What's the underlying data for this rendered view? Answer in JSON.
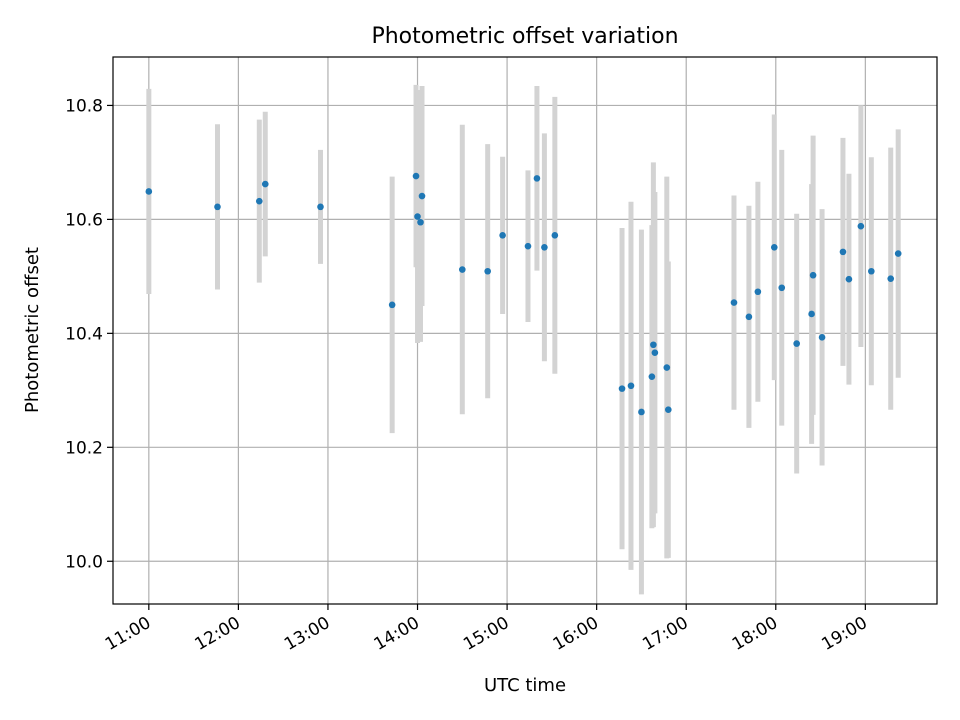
{
  "chart_data": {
    "type": "scatter",
    "title": "Photometric offset variation",
    "xlabel": "UTC time",
    "ylabel": "Photometric offset",
    "x_is_time": true,
    "x_unit": "hours UTC",
    "xlim": [
      "10:36",
      "19:48"
    ],
    "ylim": [
      9.925,
      10.885
    ],
    "xticks": [
      {
        "value": "11:00",
        "label": "11:00"
      },
      {
        "value": "12:00",
        "label": "12:00"
      },
      {
        "value": "13:00",
        "label": "13:00"
      },
      {
        "value": "14:00",
        "label": "14:00"
      },
      {
        "value": "15:00",
        "label": "15:00"
      },
      {
        "value": "16:00",
        "label": "16:00"
      },
      {
        "value": "17:00",
        "label": "17:00"
      },
      {
        "value": "18:00",
        "label": "18:00"
      },
      {
        "value": "19:00",
        "label": "19:00"
      }
    ],
    "yticks": [
      {
        "value": 10.0,
        "label": "10.0"
      },
      {
        "value": 10.2,
        "label": "10.2"
      },
      {
        "value": 10.4,
        "label": "10.4"
      },
      {
        "value": 10.6,
        "label": "10.6"
      },
      {
        "value": 10.8,
        "label": "10.8"
      }
    ],
    "grid": true,
    "marker_color": "#1f77b4",
    "errorbar_color": "#d3d3d3",
    "points": [
      {
        "x": "11:00",
        "y": 10.649,
        "err": 0.18
      },
      {
        "x": "11:46",
        "y": 10.622,
        "err": 0.145
      },
      {
        "x": "12:14",
        "y": 10.632,
        "err": 0.143
      },
      {
        "x": "12:18",
        "y": 10.662,
        "err": 0.127
      },
      {
        "x": "12:55",
        "y": 10.622,
        "err": 0.1
      },
      {
        "x": "13:43",
        "y": 10.45,
        "err": 0.225
      },
      {
        "x": "13:59",
        "y": 10.676,
        "err": 0.16
      },
      {
        "x": "14:00",
        "y": 10.605,
        "err": 0.222
      },
      {
        "x": "14:02",
        "y": 10.595,
        "err": 0.21
      },
      {
        "x": "14:03",
        "y": 10.641,
        "err": 0.193
      },
      {
        "x": "14:30",
        "y": 10.512,
        "err": 0.254
      },
      {
        "x": "14:47",
        "y": 10.509,
        "err": 0.223
      },
      {
        "x": "14:57",
        "y": 10.572,
        "err": 0.138
      },
      {
        "x": "15:14",
        "y": 10.553,
        "err": 0.133
      },
      {
        "x": "15:20",
        "y": 10.672,
        "err": 0.162
      },
      {
        "x": "15:25",
        "y": 10.551,
        "err": 0.2
      },
      {
        "x": "15:32",
        "y": 10.572,
        "err": 0.243
      },
      {
        "x": "16:17",
        "y": 10.303,
        "err": 0.282
      },
      {
        "x": "16:23",
        "y": 10.308,
        "err": 0.323
      },
      {
        "x": "16:30",
        "y": 10.262,
        "err": 0.32
      },
      {
        "x": "16:37",
        "y": 10.324,
        "err": 0.266
      },
      {
        "x": "16:38",
        "y": 10.38,
        "err": 0.32
      },
      {
        "x": "16:39",
        "y": 10.366,
        "err": 0.282
      },
      {
        "x": "16:47",
        "y": 10.34,
        "err": 0.335
      },
      {
        "x": "16:48",
        "y": 10.266,
        "err": 0.26
      },
      {
        "x": "17:32",
        "y": 10.454,
        "err": 0.188
      },
      {
        "x": "17:42",
        "y": 10.429,
        "err": 0.195
      },
      {
        "x": "17:48",
        "y": 10.473,
        "err": 0.193
      },
      {
        "x": "17:59",
        "y": 10.551,
        "err": 0.233
      },
      {
        "x": "18:04",
        "y": 10.48,
        "err": 0.242
      },
      {
        "x": "18:14",
        "y": 10.382,
        "err": 0.228
      },
      {
        "x": "18:24",
        "y": 10.434,
        "err": 0.228
      },
      {
        "x": "18:25",
        "y": 10.502,
        "err": 0.245
      },
      {
        "x": "18:31",
        "y": 10.393,
        "err": 0.225
      },
      {
        "x": "18:45",
        "y": 10.543,
        "err": 0.2
      },
      {
        "x": "18:49",
        "y": 10.495,
        "err": 0.185
      },
      {
        "x": "18:57",
        "y": 10.588,
        "err": 0.212
      },
      {
        "x": "19:04",
        "y": 10.509,
        "err": 0.2
      },
      {
        "x": "19:17",
        "y": 10.496,
        "err": 0.23
      },
      {
        "x": "19:22",
        "y": 10.54,
        "err": 0.218
      }
    ]
  }
}
